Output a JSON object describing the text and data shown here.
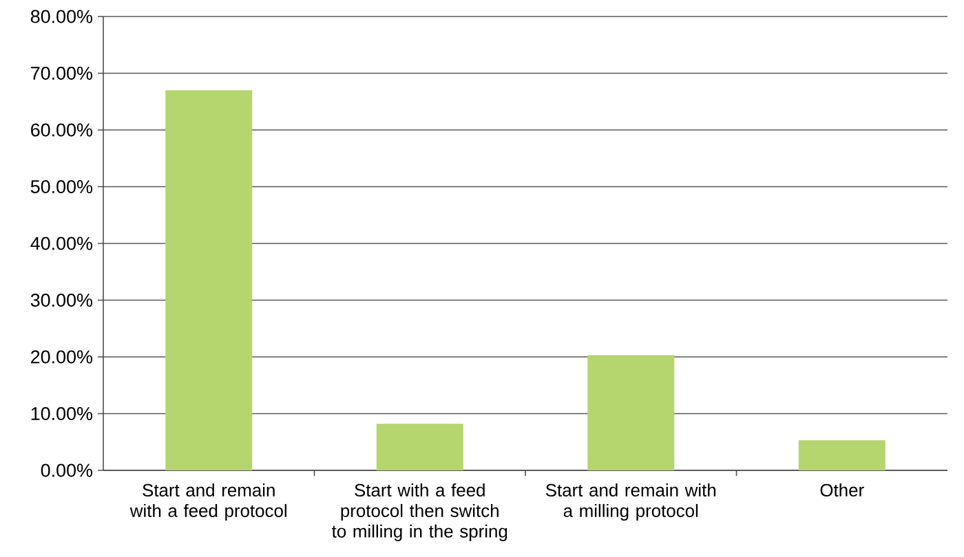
{
  "chart_data": {
    "type": "bar",
    "categories": [
      "Start and remain with a feed protocol",
      "Start with a feed protocol then switch to milling in the spring",
      "Start and remain with a milling protocol",
      "Other"
    ],
    "values": [
      67,
      8.2,
      20.3,
      5.3
    ],
    "color": "#b5d56f",
    "ylim": [
      0,
      80
    ],
    "yticks": [
      {
        "value": 0,
        "label": "0.00%"
      },
      {
        "value": 10,
        "label": "10.00%"
      },
      {
        "value": 20,
        "label": "20.00%"
      },
      {
        "value": 30,
        "label": "30.00%"
      },
      {
        "value": 40,
        "label": "40.00%"
      },
      {
        "value": 50,
        "label": "50.00%"
      },
      {
        "value": 60,
        "label": "60.00%"
      },
      {
        "value": 70,
        "label": "70.00%"
      },
      {
        "value": 80,
        "label": "80.00%"
      }
    ],
    "grid": "y"
  }
}
